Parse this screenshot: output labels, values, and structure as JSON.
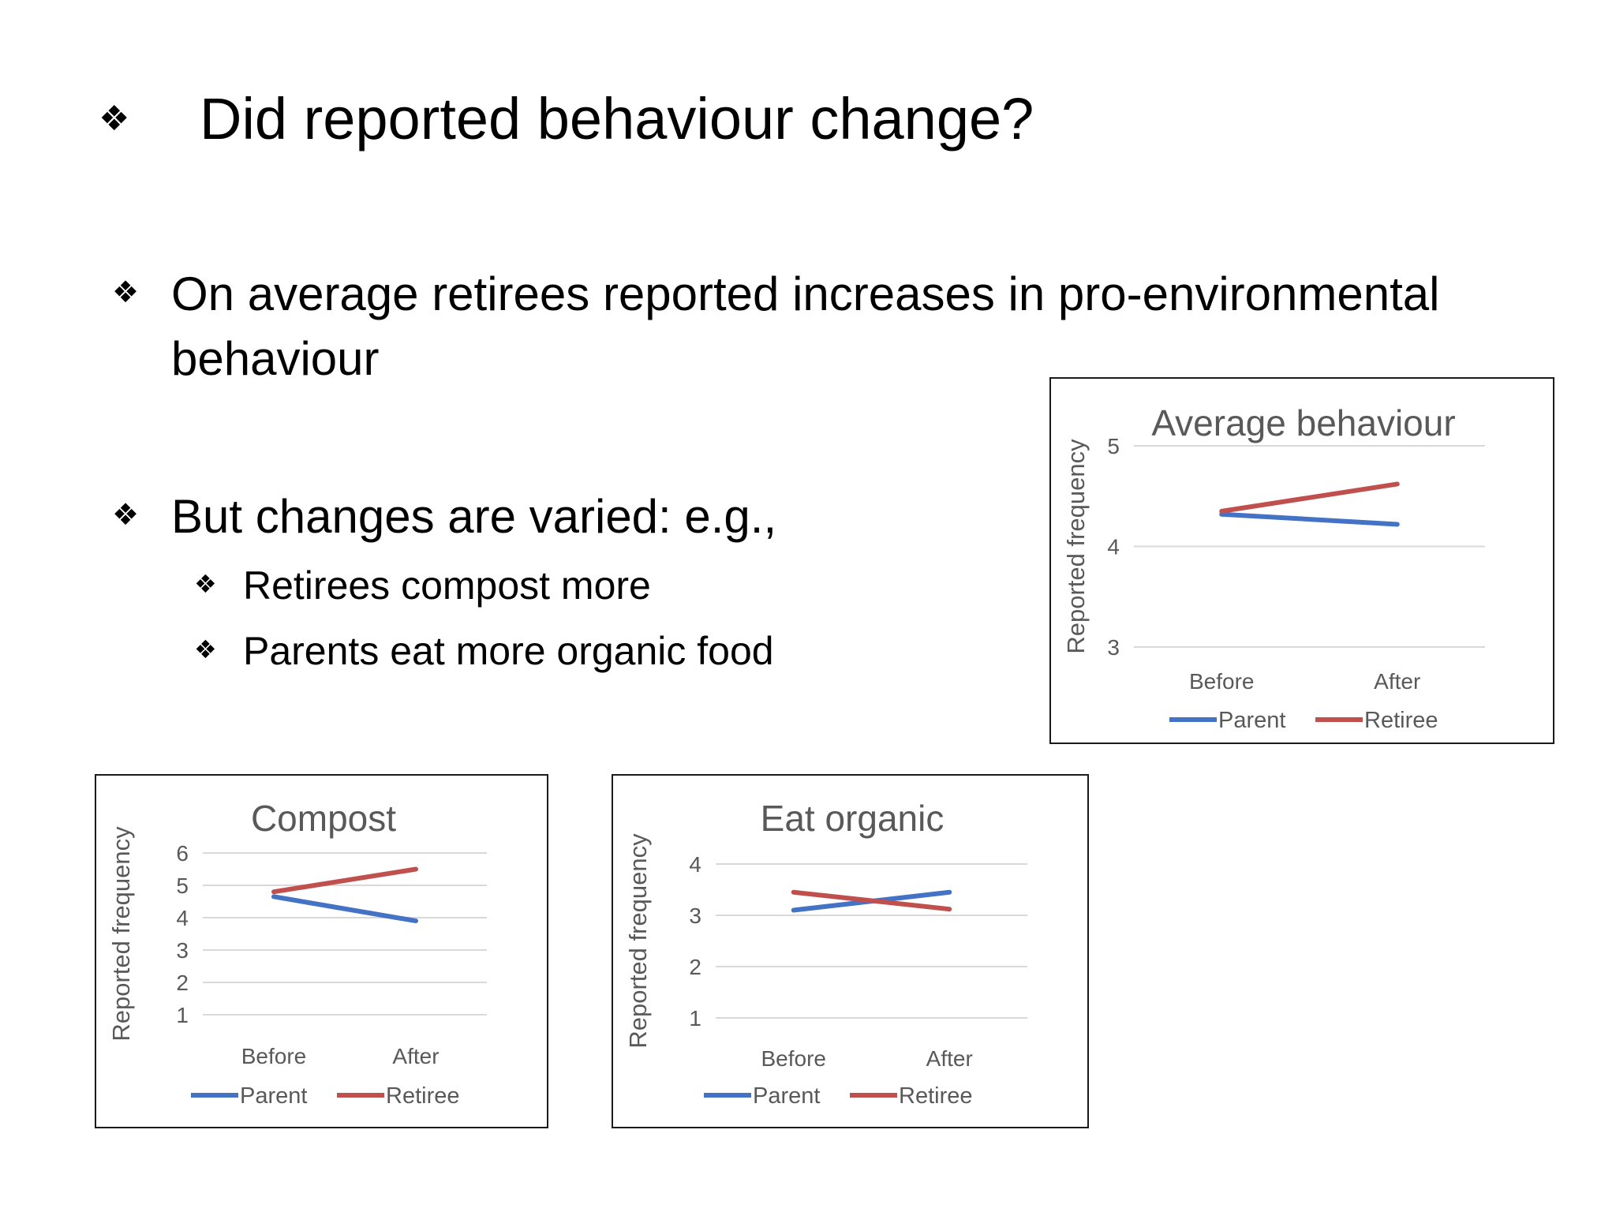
{
  "slide": {
    "title_bullet": "❖",
    "title": "Did reported behaviour change?",
    "bullet_symbol": "❖",
    "bullets": [
      {
        "text": "On average retirees reported increases in pro-environmental behaviour"
      },
      {
        "text": "But changes are varied: e.g.,"
      }
    ],
    "sub_bullets": [
      {
        "text": "Retirees compost more"
      },
      {
        "text": "Parents eat more organic food"
      }
    ]
  },
  "chart_data": [
    {
      "type": "line",
      "title": "Average behaviour",
      "categories": [
        "Before",
        "After"
      ],
      "series": [
        {
          "name": "Parent",
          "values": [
            4.32,
            4.22
          ],
          "color": "#4472C4"
        },
        {
          "name": "Retiree",
          "values": [
            4.35,
            4.62
          ],
          "color": "#C0504D"
        }
      ],
      "ylabel": "Reported frequency",
      "ylim": [
        3,
        5
      ],
      "yticks": [
        3,
        4,
        5
      ],
      "grid": true,
      "legend": "bottom"
    },
    {
      "type": "line",
      "title": "Compost",
      "categories": [
        "Before",
        "After"
      ],
      "series": [
        {
          "name": "Parent",
          "values": [
            4.65,
            3.9
          ],
          "color": "#4472C4"
        },
        {
          "name": "Retiree",
          "values": [
            4.8,
            5.5
          ],
          "color": "#C0504D"
        }
      ],
      "ylabel": "Reported frequency",
      "ylim": [
        1,
        6
      ],
      "yticks": [
        1,
        2,
        3,
        4,
        5,
        6
      ],
      "grid": true,
      "legend": "bottom"
    },
    {
      "type": "line",
      "title": "Eat organic",
      "categories": [
        "Before",
        "After"
      ],
      "series": [
        {
          "name": "Parent",
          "values": [
            3.1,
            3.45
          ],
          "color": "#4472C4"
        },
        {
          "name": "Retiree",
          "values": [
            3.45,
            3.12
          ],
          "color": "#C0504D"
        }
      ],
      "ylabel": "Reported frequency",
      "ylim": [
        1,
        4
      ],
      "yticks": [
        1,
        2,
        3,
        4
      ],
      "grid": true,
      "legend": "bottom"
    }
  ]
}
